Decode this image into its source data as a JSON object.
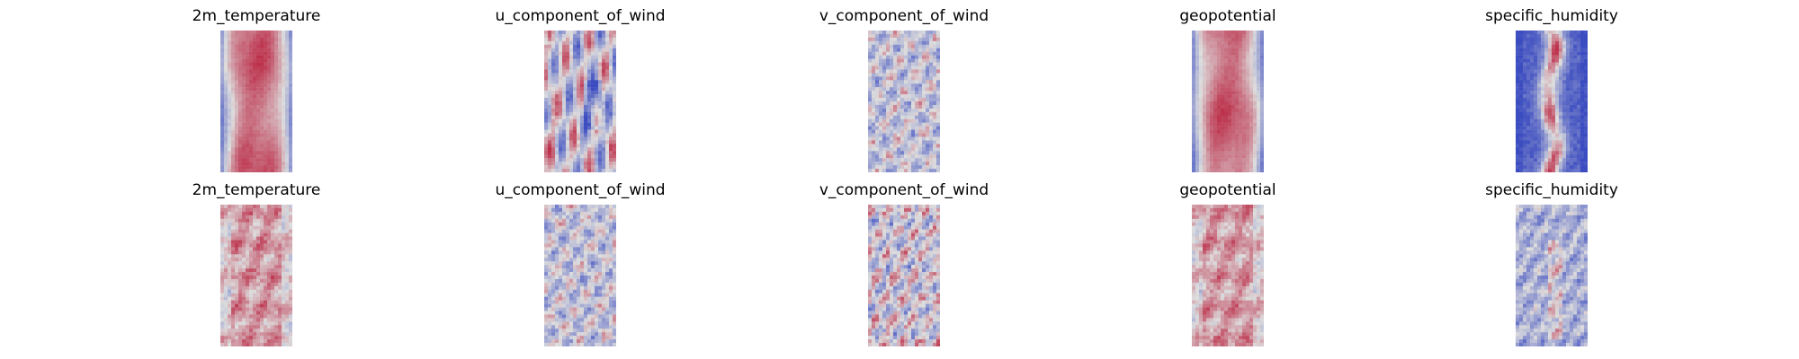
{
  "figure": {
    "colormap": "coolwarm",
    "colors": {
      "cold": "#3b4cc0",
      "neutral": "#dddddd",
      "warm": "#b40426"
    },
    "rows": [
      {
        "panels": [
          {
            "title": "2m_temperature",
            "pattern": "warm_core_smooth"
          },
          {
            "title": "u_component_of_wind",
            "pattern": "streaky_mixed"
          },
          {
            "title": "v_component_of_wind",
            "pattern": "noisy_neutral"
          },
          {
            "title": "geopotential",
            "pattern": "warm_core_smooth"
          },
          {
            "title": "specific_humidity",
            "pattern": "narrow_warm_core"
          }
        ]
      },
      {
        "panels": [
          {
            "title": "2m_temperature",
            "pattern": "patchy_warm"
          },
          {
            "title": "u_component_of_wind",
            "pattern": "noisy_neutral"
          },
          {
            "title": "v_component_of_wind",
            "pattern": "noisy_mixed"
          },
          {
            "title": "geopotential",
            "pattern": "patchy_warm"
          },
          {
            "title": "specific_humidity",
            "pattern": "noisy_cool"
          }
        ]
      }
    ]
  }
}
